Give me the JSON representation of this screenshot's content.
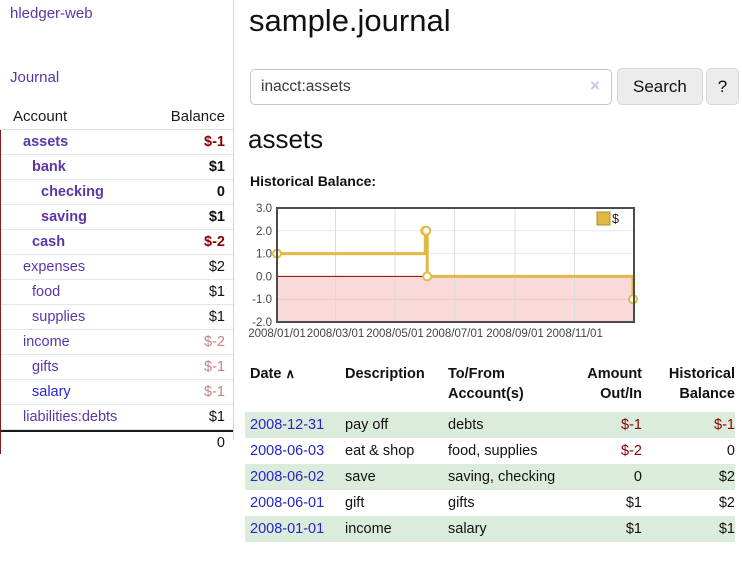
{
  "app_title": "hledger-web",
  "sidebar": {
    "journal_link": "Journal",
    "accounts": {
      "col_account": "Account",
      "col_balance": "Balance",
      "rows": [
        {
          "name": "assets",
          "balance": "$-1",
          "indent": 0,
          "bold": true,
          "neg": "dark"
        },
        {
          "name": "bank",
          "balance": "$1",
          "indent": 1,
          "bold": true,
          "neg": "none"
        },
        {
          "name": "checking",
          "balance": "0",
          "indent": 2,
          "bold": true,
          "neg": "none"
        },
        {
          "name": "saving",
          "balance": "$1",
          "indent": 2,
          "bold": true,
          "neg": "none"
        },
        {
          "name": "cash",
          "balance": "$-2",
          "indent": 1,
          "bold": true,
          "neg": "dark"
        },
        {
          "name": "expenses",
          "balance": "$2",
          "indent": 0,
          "bold": false,
          "neg": "none"
        },
        {
          "name": "food",
          "balance": "$1",
          "indent": 1,
          "bold": false,
          "neg": "none"
        },
        {
          "name": "supplies",
          "balance": "$1",
          "indent": 1,
          "bold": false,
          "neg": "none"
        },
        {
          "name": "income",
          "balance": "$-2",
          "indent": 0,
          "bold": false,
          "neg": "light"
        },
        {
          "name": "gifts",
          "balance": "$-1",
          "indent": 1,
          "bold": false,
          "neg": "light"
        },
        {
          "name": "salary",
          "balance": "$-1",
          "indent": 1,
          "bold": false,
          "neg": "light",
          "link_color": "blue"
        },
        {
          "name": "liabilities:debts",
          "balance": "$1",
          "indent": 0,
          "bold": false,
          "neg": "none"
        }
      ],
      "total": "0"
    }
  },
  "main": {
    "title": "sample.journal",
    "search": {
      "value": "inacct:assets",
      "clear": "×",
      "button": "Search",
      "help": "?"
    },
    "account_heading": "assets",
    "chart_title": "Historical Balance:",
    "register": {
      "headers": {
        "date": "Date",
        "sort_caret": "∧",
        "description": "Description",
        "accounts_line1": "To/From",
        "accounts_line2": "Account(s)",
        "amount_line1": "Amount",
        "amount_line2": "Out/In",
        "balance_line1": "Historical",
        "balance_line2": "Balance"
      },
      "rows": [
        {
          "date": "2008-12-31",
          "description": "pay off",
          "accounts": "debts",
          "amount": "$-1",
          "balance": "$-1",
          "amount_neg": true,
          "balance_neg": true
        },
        {
          "date": "2008-06-03",
          "description": "eat & shop",
          "accounts": "food, supplies",
          "amount": "$-2",
          "balance": "0",
          "amount_neg": true,
          "balance_neg": false
        },
        {
          "date": "2008-06-02",
          "description": "save",
          "accounts": "saving, checking",
          "amount": "0",
          "balance": "$2",
          "amount_neg": false,
          "balance_neg": false
        },
        {
          "date": "2008-06-01",
          "description": "gift",
          "accounts": "gifts",
          "amount": "$1",
          "balance": "$2",
          "amount_neg": false,
          "balance_neg": false
        },
        {
          "date": "2008-01-01",
          "description": "income",
          "accounts": "salary",
          "amount": "$1",
          "balance": "$1",
          "amount_neg": false,
          "balance_neg": false
        }
      ]
    }
  },
  "chart_data": {
    "type": "line",
    "step": true,
    "title": "Historical Balance:",
    "series": [
      {
        "name": "$",
        "points": [
          [
            "2008-01-01",
            1
          ],
          [
            "2008-06-01",
            2
          ],
          [
            "2008-06-02",
            2
          ],
          [
            "2008-06-03",
            0
          ],
          [
            "2008-12-31",
            -1
          ]
        ]
      }
    ],
    "x_range": [
      "2008-01-01",
      "2009-01-01"
    ],
    "ylim": [
      -2,
      3
    ],
    "y_ticks": [
      3,
      2,
      1,
      0,
      -1,
      -2
    ],
    "x_tick_dates": [
      "2008-01-01",
      "2008-03-01",
      "2008-05-01",
      "2008-07-01",
      "2008-09-01",
      "2008-11-01"
    ],
    "x_tick_labels": [
      "2008/01/01",
      "2008/03/01",
      "2008/05/01",
      "2008/07/01",
      "2008/09/01",
      "2008/11/01"
    ],
    "legend_position": "top-right",
    "grid": true,
    "colors": {
      "line": "#e0ba45",
      "below_zero_fill": "#f9d9d9",
      "zero_line": "#8b0000",
      "border": "#4c4c4c"
    }
  }
}
